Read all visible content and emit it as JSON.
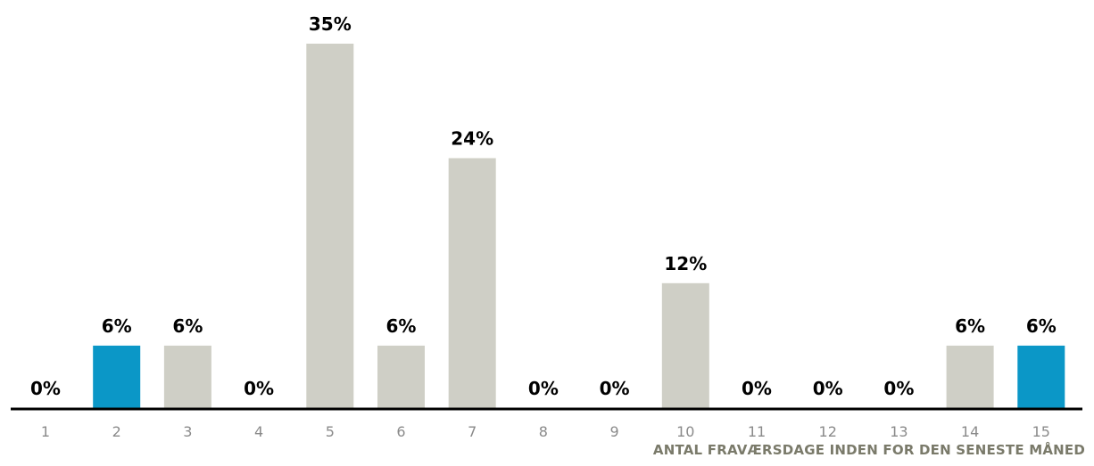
{
  "chart_data": {
    "type": "bar",
    "title": "",
    "xlabel": "ANTAL FRAVÆRSDAGE INDEN FOR DEN SENESTE MÅNED",
    "ylabel": "",
    "ylim": [
      0,
      35
    ],
    "grid": false,
    "categories": [
      "1",
      "2",
      "3",
      "4",
      "5",
      "6",
      "7",
      "8",
      "9",
      "10",
      "11",
      "12",
      "13",
      "14",
      "15"
    ],
    "values": [
      0,
      6,
      6,
      0,
      35,
      6,
      24,
      0,
      0,
      12,
      0,
      0,
      0,
      6,
      6
    ],
    "data_labels": [
      "0%",
      "6%",
      "6%",
      "0%",
      "35%",
      "6%",
      "24%",
      "0%",
      "0%",
      "12%",
      "0%",
      "0%",
      "0%",
      "6%",
      "6%"
    ],
    "highlighted_categories": [
      "2",
      "15"
    ],
    "colors": {
      "bar": "#cfcfc6",
      "highlight": "#0b97c7",
      "axis": "#000000",
      "tick_label": "#8a8a8a",
      "data_label": "#000000",
      "xlabel": "#7a7a6a"
    }
  }
}
